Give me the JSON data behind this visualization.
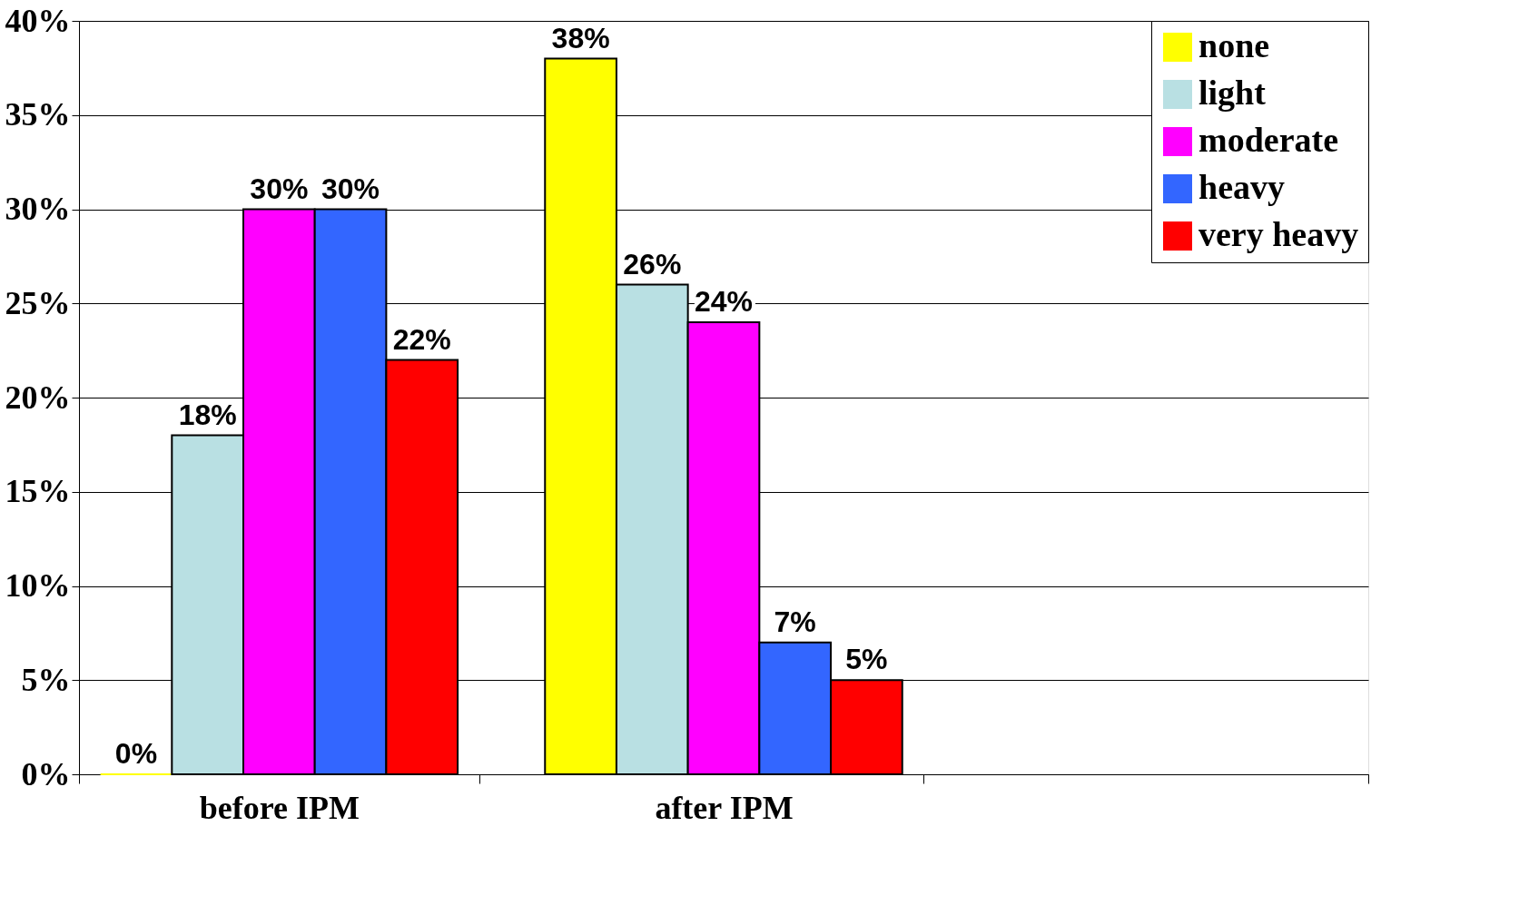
{
  "chart_data": {
    "type": "bar",
    "categories": [
      "before IPM",
      "after IPM",
      null
    ],
    "series": [
      {
        "name": "none",
        "color": "#ffff00",
        "values": [
          0,
          38,
          null
        ],
        "value_labels": [
          "0%",
          "38%",
          null
        ]
      },
      {
        "name": "light",
        "color": "#b9e0e3",
        "values": [
          18,
          26,
          null
        ],
        "value_labels": [
          "18%",
          "26%",
          null
        ]
      },
      {
        "name": "moderate",
        "color": "#ff00ff",
        "values": [
          30,
          24,
          null
        ],
        "value_labels": [
          "30%",
          "24%",
          null
        ]
      },
      {
        "name": "heavy",
        "color": "#3366ff",
        "values": [
          30,
          7,
          null
        ],
        "value_labels": [
          "30%",
          "7%",
          null
        ]
      },
      {
        "name": "very heavy",
        "color": "#ff0000",
        "values": [
          22,
          5,
          null
        ],
        "value_labels": [
          "22%",
          "5%",
          null
        ]
      }
    ],
    "ylim": [
      0,
      40
    ],
    "yticks": [
      {
        "value": 0,
        "label": "0%"
      },
      {
        "value": 5,
        "label": "5%"
      },
      {
        "value": 10,
        "label": "10%"
      },
      {
        "value": 15,
        "label": "15%"
      },
      {
        "value": 20,
        "label": "20%"
      },
      {
        "value": 25,
        "label": "25%"
      },
      {
        "value": 30,
        "label": "30%"
      },
      {
        "value": 35,
        "label": "35%"
      },
      {
        "value": 40,
        "label": "40%"
      }
    ],
    "grid": "y",
    "legend": "top right"
  }
}
